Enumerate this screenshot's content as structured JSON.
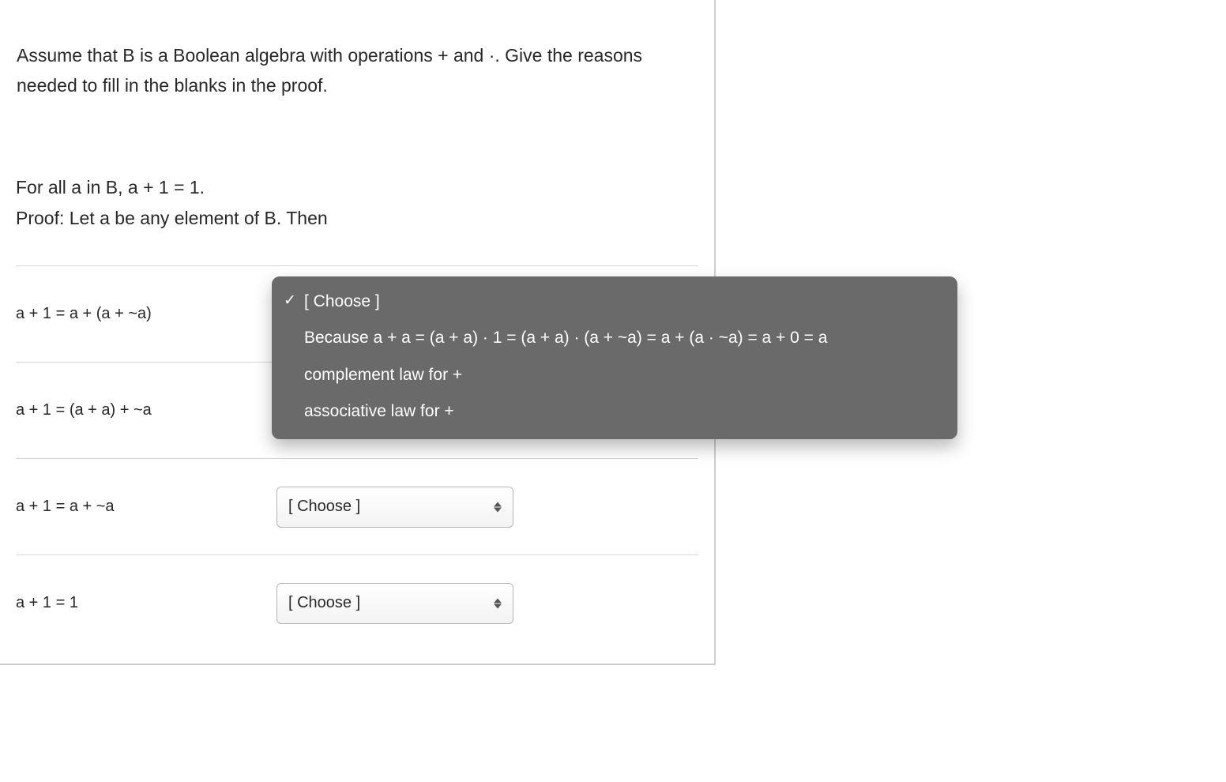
{
  "colors": {
    "text": "#262626",
    "border": "#cfcfcf",
    "row_border": "#d7d7d7",
    "dropdown_bg": "#6a6a6a",
    "dropdown_text": "#ffffff",
    "select_border": "#b5b5b5",
    "select_grad_top": "#ffffff",
    "select_grad_bot": "#f3f3f3"
  },
  "prompt": "Assume that B is a Boolean algebra with operations + and ·. Give the reasons needed to fill in the blanks in the proof.",
  "statement_line1": "For all a in B, a + 1 = 1.",
  "statement_line2": "Proof: Let a be any element of B. Then",
  "choose_placeholder": "[ Choose ]",
  "rows": [
    {
      "expr": "a + 1 = a + (a + ~a)",
      "has_open_dropdown": true
    },
    {
      "expr": "a + 1 = (a + a) + ~a",
      "has_open_dropdown": false
    },
    {
      "expr": "a + 1 = a + ~a",
      "has_open_dropdown": false
    },
    {
      "expr": "a + 1 = 1",
      "has_open_dropdown": false
    }
  ],
  "dropdown_options": [
    {
      "label": "[ Choose ]",
      "selected": true
    },
    {
      "label": "Because a + a = (a + a) · 1 = (a + a) · (a + ~a) = a + (a · ~a) = a + 0 = a",
      "selected": false
    },
    {
      "label": "complement law for +",
      "selected": false
    },
    {
      "label": "associative law for +",
      "selected": false
    }
  ]
}
